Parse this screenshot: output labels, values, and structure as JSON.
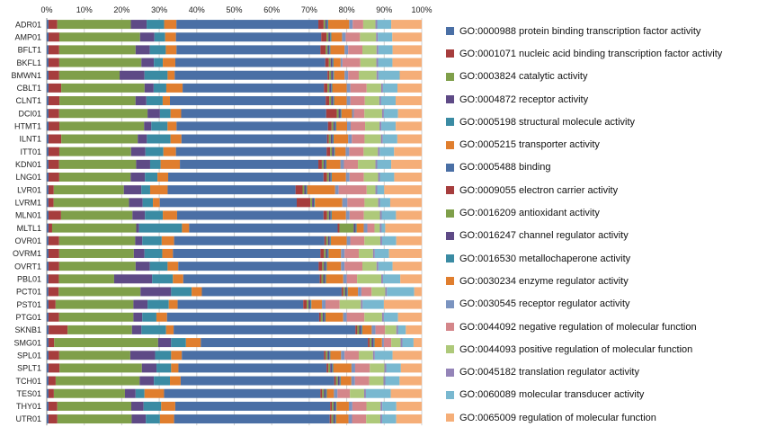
{
  "chart_data": {
    "type": "bar",
    "orientation": "horizontal",
    "stacked": "percent",
    "xlim": [
      0,
      100
    ],
    "x_ticks": [
      "0%",
      "10%",
      "20%",
      "30%",
      "40%",
      "50%",
      "60%",
      "70%",
      "80%",
      "90%",
      "100%"
    ],
    "x_tick_position": "top",
    "grid": true,
    "legend_position": "right",
    "categories": [
      "ADR01",
      "AMP01",
      "BFLT1",
      "BKFL1",
      "BMWN1",
      "CBLT1",
      "CLNT1",
      "DCI01",
      "HTMT1",
      "ILNT1",
      "ITT01",
      "KDN01",
      "LNG01",
      "LVR01",
      "LVRM1",
      "MLN01",
      "MLTL1",
      "OVR01",
      "OVRM1",
      "OVRT1",
      "PBL01",
      "PCT01",
      "PST01",
      "PTG01",
      "SKNB1",
      "SMG01",
      "SPL01",
      "SPLT1",
      "TCH01",
      "TES01",
      "THY01",
      "UTR01"
    ],
    "series": [
      {
        "name": "GO:0000988 protein binding transcription factor activity",
        "color": "#4a6fa5",
        "values": [
          0.5,
          0.5,
          0.5,
          0.5,
          0.5,
          0.5,
          0.5,
          0.5,
          0.5,
          0.5,
          0.5,
          0.5,
          0.5,
          0.5,
          0.5,
          0.5,
          0.5,
          0.5,
          0.5,
          0.5,
          0.5,
          0.5,
          0.5,
          0.5,
          0.5,
          0.5,
          0.5,
          0.5,
          0.5,
          0.5,
          0.5,
          0.5
        ]
      },
      {
        "name": "GO:0001071 nucleic acid binding transcription factor activity",
        "color": "#a63d3d",
        "values": [
          2.5,
          3,
          3,
          3,
          3,
          3.5,
          3,
          3,
          3,
          3.5,
          3,
          3,
          3,
          1.5,
          1.5,
          3.5,
          1,
          3,
          3,
          3,
          3,
          3,
          2,
          3,
          5,
          1.5,
          3,
          3,
          2,
          1.5,
          2.5,
          2.5
        ]
      },
      {
        "name": "GO:0003824 catalytic activity",
        "color": "#7f9f4a",
        "values": [
          21,
          22.5,
          21.5,
          23,
          17,
          23,
          21,
          25,
          23.5,
          21,
          20,
          22,
          20,
          20,
          22,
          20,
          23.5,
          21.5,
          21,
          21.5,
          16,
          24,
          22,
          21,
          17,
          28,
          20,
          22.5,
          23.5,
          20,
          21,
          21
        ]
      },
      {
        "name": "GO:0004872 receptor activity",
        "color": "#5e4a86",
        "values": [
          4.5,
          4,
          4,
          3.5,
          7,
          2.5,
          3,
          3.5,
          2,
          2.5,
          4,
          4,
          4,
          5,
          4,
          3.5,
          0.8,
          2,
          3,
          4,
          11,
          9,
          4,
          2.5,
          2.5,
          3.5,
          7,
          4,
          4,
          3,
          3.5,
          4
        ]
      },
      {
        "name": "GO:0005198 structural molecule activity",
        "color": "#3a8ba3",
        "values": [
          5,
          3,
          4.5,
          2.5,
          6.5,
          3.5,
          4.5,
          3,
          4.5,
          6.5,
          5,
          3,
          3.5,
          2.5,
          3,
          5,
          12,
          5.5,
          5,
          5,
          6,
          6,
          6,
          4,
          6.5,
          4,
          4.5,
          4,
          4.5,
          2.5,
          5,
          4
        ]
      },
      {
        "name": "GO:0005215 transporter activity",
        "color": "#e07e2e",
        "values": [
          3.5,
          3,
          3,
          3.5,
          2,
          4.5,
          2,
          3,
          2.5,
          3,
          3.5,
          5.5,
          3,
          5,
          2,
          4,
          2,
          3.5,
          3,
          3,
          3,
          3,
          2.5,
          3,
          2,
          4,
          3,
          2,
          3,
          5.5,
          4,
          4
        ]
      },
      {
        "name": "GO:0005488 binding",
        "color": "#4a6fa5",
        "values": [
          40.5,
          40.5,
          40.5,
          42,
          43,
          39,
          43,
          41,
          42,
          40,
          42,
          39.5,
          43.5,
          36.5,
          40,
          41,
          41.5,
          42.5,
          41.5,
          39.5,
          39.5,
          41,
          35.5,
          43,
          48,
          45,
          40,
          40.5,
          43,
          44,
          44,
          44
        ]
      },
      {
        "name": "GO:0009055 electron carrier activity",
        "color": "#a63d3d",
        "values": [
          1.5,
          1.5,
          1.5,
          1,
          0.5,
          1,
          1,
          3,
          1,
          0.5,
          1,
          1,
          1,
          2,
          4,
          1,
          0.5,
          0.5,
          1,
          1,
          0.5,
          0.5,
          1,
          0.5,
          0.5,
          0.5,
          0.5,
          0.5,
          0.5,
          0.5,
          0.5,
          0.5
        ]
      },
      {
        "name": "GO:0016209 antioxidant activity",
        "color": "#7f9f4a",
        "values": [
          0.5,
          0.5,
          0.5,
          0.5,
          0.5,
          0.5,
          0.5,
          0.5,
          0.5,
          0.5,
          0.5,
          0.5,
          0.5,
          0.5,
          0.5,
          0.5,
          4,
          0.5,
          0.5,
          0.5,
          0.5,
          0.5,
          0.5,
          0.5,
          0.5,
          0.5,
          0.5,
          0.5,
          0.5,
          0.5,
          0.5,
          0.5
        ]
      },
      {
        "name": "GO:0016247 channel regulator activity",
        "color": "#5e4a86",
        "values": [
          0.5,
          0.5,
          0.5,
          0.5,
          0.5,
          0.5,
          0.5,
          0.5,
          0.5,
          0.5,
          0.5,
          0.5,
          0.5,
          0.5,
          0.5,
          0.5,
          0.5,
          0.5,
          0.5,
          0.5,
          0.5,
          0.5,
          0.5,
          0.5,
          0.5,
          0.5,
          0.5,
          0.5,
          0.5,
          0.5,
          0.5,
          0.5
        ]
      },
      {
        "name": "GO:0016530 metallochaperone activity",
        "color": "#3a8ba3",
        "values": [
          0.3,
          0.3,
          0.3,
          0.3,
          0.3,
          0.3,
          0.3,
          0.3,
          0.3,
          0.3,
          0.3,
          0.3,
          0.3,
          0.3,
          0.3,
          0.3,
          0.3,
          0.3,
          0.3,
          0.3,
          0.3,
          0.3,
          0.3,
          0.3,
          0.3,
          0.3,
          0.3,
          0.3,
          0.3,
          0.3,
          0.3,
          0.3
        ]
      },
      {
        "name": "GO:0030234 enzyme regulator activity",
        "color": "#e07e2e",
        "values": [
          6,
          3,
          4,
          2,
          3,
          4,
          3.5,
          3,
          3,
          4,
          3,
          4,
          4,
          8,
          8,
          4,
          2,
          4.5,
          3.5,
          4,
          5,
          3,
          3,
          5,
          2.5,
          2,
          3,
          5,
          3,
          2,
          3.5,
          3.5
        ]
      },
      {
        "name": "GO:0030545 receptor regulator activity",
        "color": "#7b94c0",
        "values": [
          1,
          1,
          1,
          0.5,
          1,
          1,
          1,
          0.5,
          1,
          1,
          1,
          1,
          1,
          1,
          1.5,
          1,
          1,
          1,
          1,
          1,
          1,
          1,
          1,
          1,
          1,
          0.5,
          1,
          1,
          1,
          1,
          1,
          1
        ]
      },
      {
        "name": "GO:0044092 negative regulation of molecular function",
        "color": "#d4868a",
        "values": [
          3,
          4,
          4,
          5,
          3,
          4.5,
          4,
          3,
          4,
          3.5,
          4,
          4,
          4,
          8,
          5,
          4,
          2,
          4,
          4,
          5,
          3,
          3,
          4,
          5,
          2.5,
          2,
          4,
          4,
          4,
          3.5,
          4,
          4
        ]
      },
      {
        "name": "GO:0044093 positive regulation of molecular function",
        "color": "#aec97a",
        "values": [
          3.5,
          4.5,
          4,
          4.5,
          5,
          4,
          4,
          5,
          4,
          4.5,
          4,
          5,
          4,
          2.5,
          4,
          4.5,
          1.5,
          4.5,
          4,
          4,
          7,
          4,
          6,
          5,
          3,
          2.5,
          4,
          4,
          4,
          4,
          4,
          4
        ]
      },
      {
        "name": "GO:0045182 translation regulator activity",
        "color": "#9484b8",
        "values": [
          0.5,
          0.5,
          0.5,
          0.5,
          0.5,
          0.5,
          0.5,
          0.5,
          0.5,
          0.5,
          0.5,
          0.5,
          0.5,
          0.5,
          0.5,
          0.5,
          0.5,
          0.5,
          0.5,
          0.5,
          0.5,
          0.5,
          0.5,
          0.5,
          0.5,
          0.5,
          0.5,
          0.5,
          0.5,
          0.5,
          0.5,
          0.5
        ]
      },
      {
        "name": "GO:0060089 molecular transducer activity",
        "color": "#79b8d0",
        "values": [
          4,
          4,
          4,
          4,
          6,
          4,
          4,
          4,
          4,
          4,
          4,
          4,
          4,
          2,
          3,
          4,
          1,
          4,
          4,
          4,
          5,
          8,
          6,
          4,
          2,
          3,
          5,
          4,
          4,
          7,
          4,
          4
        ]
      },
      {
        "name": "GO:0065009 regulation of molecular function",
        "color": "#f5ae78",
        "values": [
          8.7,
          8.2,
          8.2,
          8.2,
          6.2,
          6.7,
          7.2,
          6.7,
          7.2,
          6.7,
          7.7,
          8.7,
          7.7,
          10.7,
          9.2,
          7.2,
          10.2,
          7.2,
          9.2,
          8.2,
          6.2,
          2.2,
          10.7,
          6.7,
          4.2,
          2.2,
          8.2,
          5.7,
          6.2,
          8.7,
          7.2,
          7.2
        ]
      }
    ]
  }
}
